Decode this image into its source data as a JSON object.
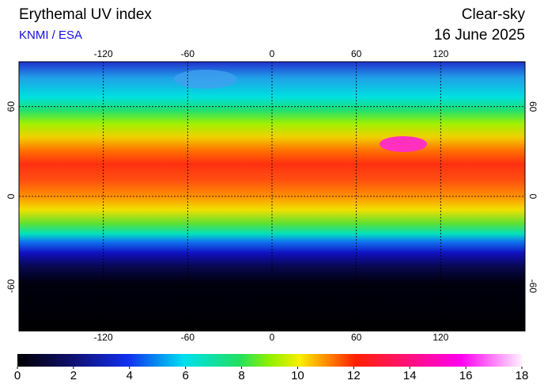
{
  "header": {
    "title": "Erythemal UV index",
    "subtitle": "KNMI / ESA",
    "right_title": "Clear-sky",
    "date": "16 June 2025"
  },
  "map": {
    "xlim": [
      -180,
      180
    ],
    "ylim": [
      -90,
      90
    ],
    "xticks": [
      -120,
      -60,
      0,
      60,
      120
    ],
    "yticks": [
      -60,
      0,
      60
    ],
    "grid": true
  },
  "colorbar": {
    "lim": [
      0,
      18
    ],
    "ticks": [
      0,
      2,
      4,
      6,
      8,
      10,
      12,
      14,
      16,
      18
    ]
  }
}
